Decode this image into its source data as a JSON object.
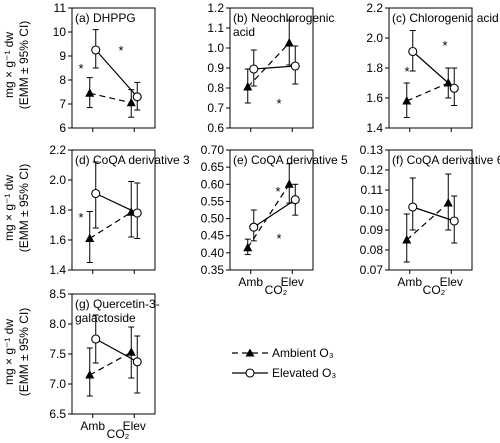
{
  "figure": {
    "ylabel_line1": "mg × g⁻¹ dw",
    "ylabel_line2": "(EMM ± 95% CI)",
    "xlabel": "CO₂",
    "legend": {
      "ambient": "Ambient O₃",
      "elevated": "Elevated O₃"
    }
  },
  "chart_data": [
    {
      "type": "line",
      "panel": "a",
      "title": "(a) DHPPG",
      "title_lines": [
        "(a) DHPPG"
      ],
      "categories": [
        "Amb",
        "Elev"
      ],
      "ylim": [
        6,
        11
      ],
      "yticks": [
        "6",
        "7",
        "8",
        "9",
        "10",
        "11"
      ],
      "series": [
        {
          "name": "Ambient O₃",
          "values": [
            7.45,
            7.05
          ],
          "ci_low": [
            6.85,
            6.45
          ],
          "ci_high": [
            8.1,
            7.6
          ]
        },
        {
          "name": "Elevated O₃",
          "values": [
            9.25,
            7.3
          ],
          "ci_low": [
            8.5,
            6.75
          ],
          "ci_high": [
            10.1,
            7.9
          ]
        }
      ],
      "annotations": [
        "*",
        "*"
      ]
    },
    {
      "type": "line",
      "panel": "b",
      "title": "(b) Neochlorogenic acid",
      "title_lines": [
        "(b) Neochlorogenic",
        "acid"
      ],
      "categories": [
        "Amb",
        "Elev"
      ],
      "ylim": [
        0.6,
        1.2
      ],
      "yticks": [
        "0.6",
        "0.7",
        "0.8",
        "0.9",
        "1.0",
        "1.1",
        "1.2"
      ],
      "series": [
        {
          "name": "Ambient O₃",
          "values": [
            0.805,
            1.025
          ],
          "ci_low": [
            0.725,
            0.915
          ],
          "ci_high": [
            0.895,
            1.14
          ]
        },
        {
          "name": "Elevated O₃",
          "values": [
            0.895,
            0.91
          ],
          "ci_low": [
            0.81,
            0.82
          ],
          "ci_high": [
            0.99,
            1.01
          ]
        }
      ],
      "annotations": [
        "*"
      ]
    },
    {
      "type": "line",
      "panel": "c",
      "title": "(c) Chlorogenic acid",
      "title_lines": [
        "(c) Chlorogenic acid"
      ],
      "categories": [
        "Amb",
        "Elev"
      ],
      "ylim": [
        1.4,
        2.2
      ],
      "yticks": [
        "1.4",
        "1.6",
        "1.8",
        "2.0",
        "2.2"
      ],
      "series": [
        {
          "name": "Ambient O₃",
          "values": [
            1.58,
            1.7
          ],
          "ci_low": [
            1.47,
            1.6
          ],
          "ci_high": [
            1.7,
            1.8
          ]
        },
        {
          "name": "Elevated O₃",
          "values": [
            1.91,
            1.665
          ],
          "ci_low": [
            1.78,
            1.55
          ],
          "ci_high": [
            2.05,
            1.8
          ]
        }
      ],
      "annotations": [
        "*",
        "*"
      ]
    },
    {
      "type": "line",
      "panel": "d",
      "title": "(d) CoQA derivative 3",
      "title_lines": [
        "(d) CoQA derivative 3"
      ],
      "categories": [
        "Amb",
        "Elev"
      ],
      "ylim": [
        1.4,
        2.2
      ],
      "yticks": [
        "1.4",
        "1.6",
        "1.8",
        "2.0",
        "2.2"
      ],
      "series": [
        {
          "name": "Ambient O₃",
          "values": [
            1.61,
            1.785
          ],
          "ci_low": [
            1.45,
            1.62
          ],
          "ci_high": [
            1.79,
            1.99
          ]
        },
        {
          "name": "Elevated O₃",
          "values": [
            1.91,
            1.78
          ],
          "ci_low": [
            1.68,
            1.61
          ],
          "ci_high": [
            2.12,
            1.98
          ]
        }
      ],
      "annotations": [
        "*"
      ]
    },
    {
      "type": "line",
      "panel": "e",
      "title": "(e) CoQA derivative 5",
      "title_lines": [
        "(e) CoQA derivative 5"
      ],
      "categories": [
        "Amb",
        "Elev"
      ],
      "ylim": [
        0.35,
        0.7
      ],
      "yticks": [
        "0.35",
        "0.40",
        "0.45",
        "0.50",
        "0.55",
        "0.60",
        "0.65",
        "0.70"
      ],
      "series": [
        {
          "name": "Ambient O₃",
          "values": [
            0.415,
            0.6
          ],
          "ci_low": [
            0.395,
            0.545
          ],
          "ci_high": [
            0.44,
            0.66
          ]
        },
        {
          "name": "Elevated O₃",
          "values": [
            0.475,
            0.555
          ],
          "ci_low": [
            0.435,
            0.51
          ],
          "ci_high": [
            0.525,
            0.6
          ]
        }
      ],
      "annotations": [
        "*",
        "*"
      ]
    },
    {
      "type": "line",
      "panel": "f",
      "title": "(f) CoQA derivative 6",
      "title_lines": [
        "(f) CoQA derivative 6"
      ],
      "categories": [
        "Amb",
        "Elev"
      ],
      "ylim": [
        0.07,
        0.13
      ],
      "yticks": [
        "0.07",
        "0.08",
        "0.09",
        "0.10",
        "0.11",
        "0.12",
        "0.13"
      ],
      "series": [
        {
          "name": "Ambient O₃",
          "values": [
            0.085,
            0.1035
          ],
          "ci_low": [
            0.074,
            0.09
          ],
          "ci_high": [
            0.098,
            0.118
          ]
        },
        {
          "name": "Elevated O₃",
          "values": [
            0.1015,
            0.0945
          ],
          "ci_low": [
            0.09,
            0.0835
          ],
          "ci_high": [
            0.116,
            0.107
          ]
        }
      ],
      "annotations": []
    },
    {
      "type": "line",
      "panel": "g",
      "title": "(g) Quercetin-3-galactoside",
      "title_lines": [
        "(g) Quercetin-3-",
        "galactoside"
      ],
      "categories": [
        "Amb",
        "Elev"
      ],
      "ylim": [
        6.5,
        8.5
      ],
      "yticks": [
        "6.5",
        "7.0",
        "7.5",
        "8.0",
        "8.5"
      ],
      "series": [
        {
          "name": "Ambient O₃",
          "values": [
            7.15,
            7.53
          ],
          "ci_low": [
            6.8,
            7.1
          ],
          "ci_high": [
            7.6,
            7.95
          ]
        },
        {
          "name": "Elevated O₃",
          "values": [
            7.75,
            7.37
          ],
          "ci_low": [
            7.35,
            6.85
          ],
          "ci_high": [
            8.15,
            7.8
          ]
        }
      ],
      "annotations": []
    }
  ]
}
